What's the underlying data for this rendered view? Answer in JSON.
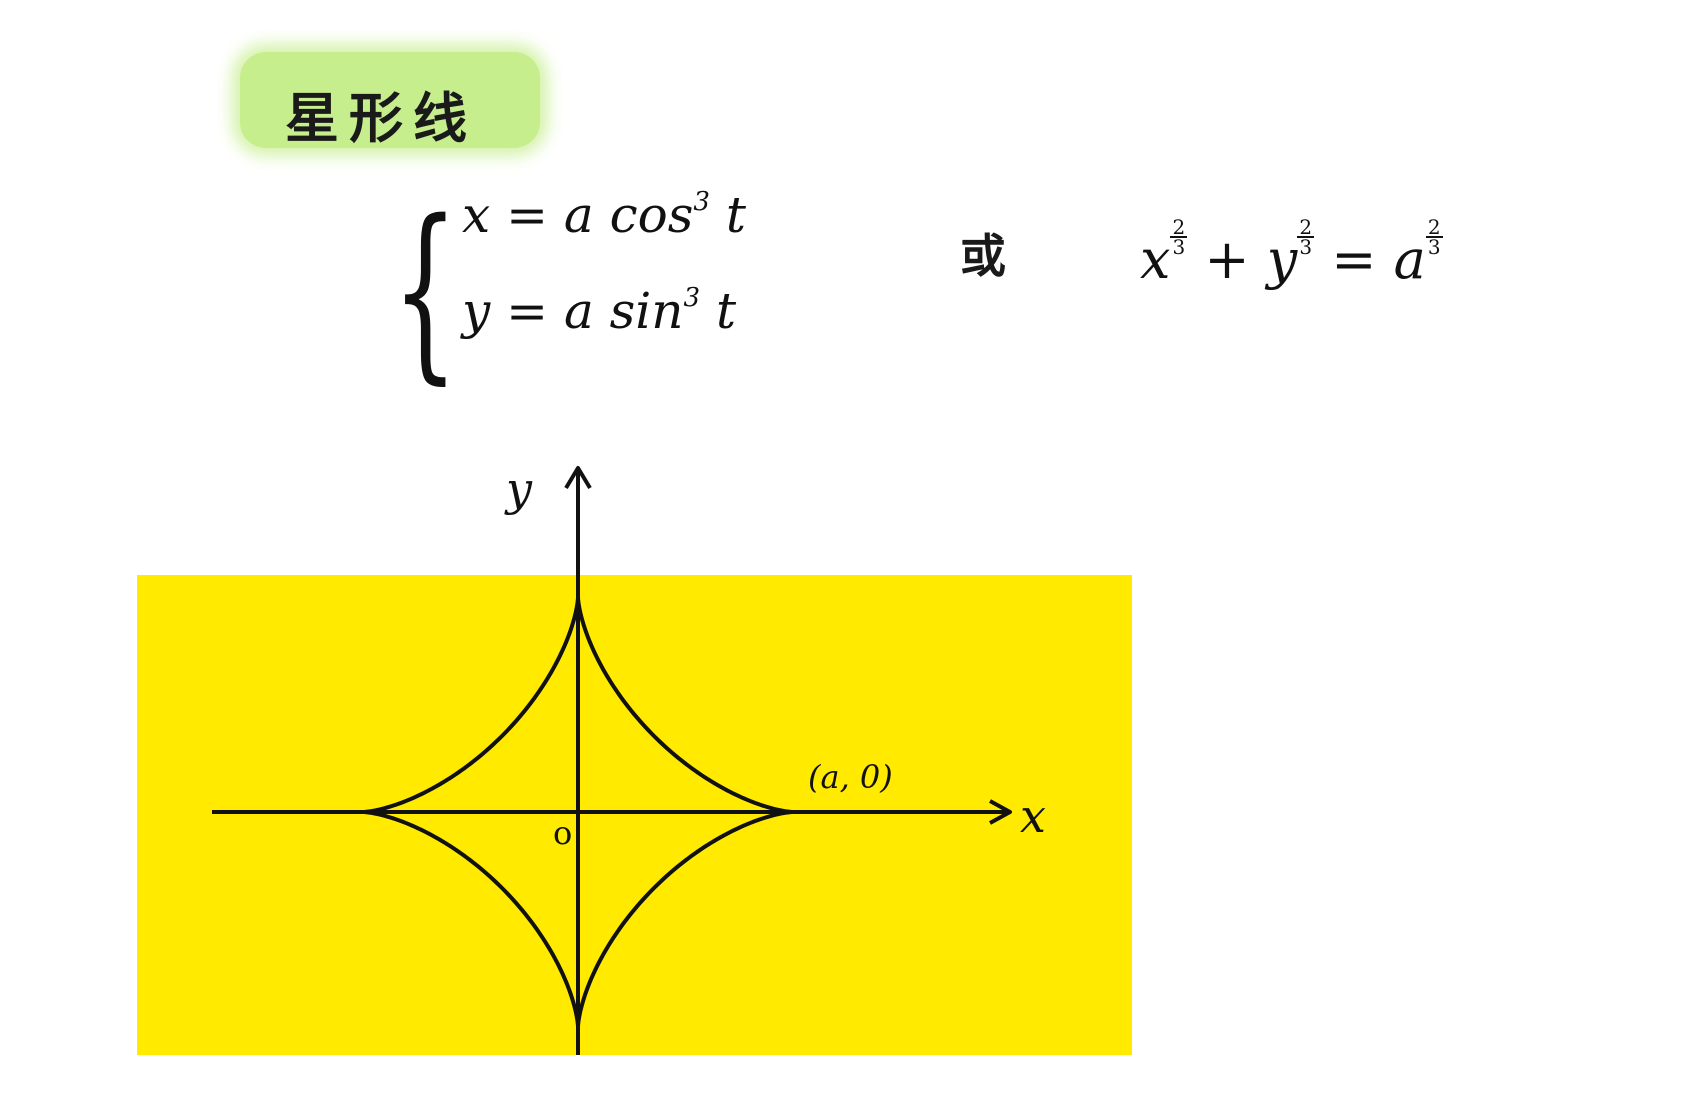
{
  "title": "星形线",
  "parametric": {
    "x_lhs": "x",
    "x_rhs": "= a cos",
    "x_exp": "3",
    "x_var": "t",
    "y_lhs": "y",
    "y_rhs": "= a sin",
    "y_exp": "3",
    "y_var": "t"
  },
  "connector": "或",
  "cartesian": {
    "x": "x",
    "y": "y",
    "a": "a",
    "plus": "+",
    "equals": "=",
    "exp_num": "2",
    "exp_den": "3"
  },
  "axes": {
    "x_label": "x",
    "y_label": "y",
    "origin_label": "o",
    "point_label": "(a, 0)"
  },
  "colors": {
    "highlight_title": "#c6ee8c",
    "highlight_region": "#ffea00",
    "ink": "#111111"
  }
}
